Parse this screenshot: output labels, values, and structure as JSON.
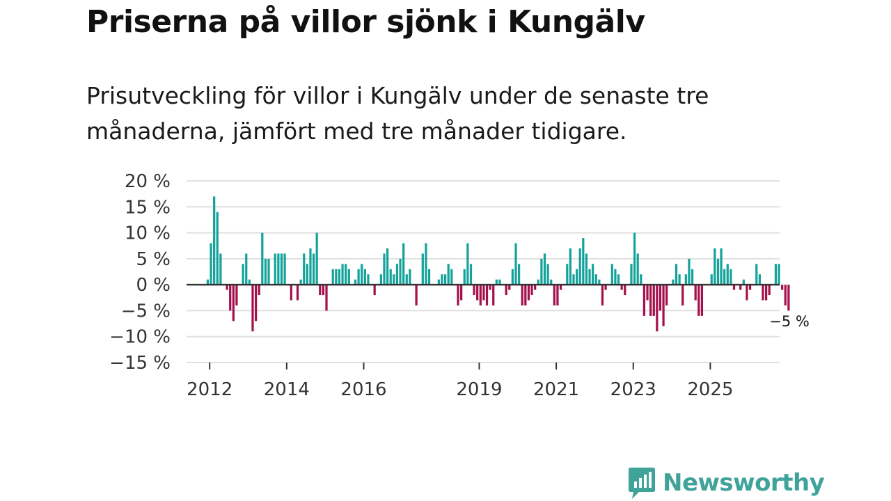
{
  "chart_data": {
    "type": "bar",
    "title": "Priserna på villor sjönk i Kungälv",
    "subtitle": "Prisutveckling för villor i Kungälv under de senaste tre månaderna, jämfört med tre månader tidigare.",
    "xlabel": "",
    "ylabel": "",
    "ylim": [
      -15,
      20
    ],
    "yticks": [
      20,
      15,
      10,
      5,
      0,
      -5,
      -10,
      -15
    ],
    "ytick_labels": [
      "20 %",
      "15 %",
      "10 %",
      "5 %",
      "0 %",
      "−5 %",
      "−10 %",
      "−15 %"
    ],
    "xtick_labels": [
      "2012",
      "2014",
      "2016",
      "2019",
      "2021",
      "2023",
      "2025"
    ],
    "xtick_positions": [
      2012,
      2014,
      2016,
      2019,
      2021,
      2023,
      2025
    ],
    "x_start": 2011.4,
    "x_end": 2026.8,
    "positive_color": "#14a39a",
    "negative_color": "#a4104b",
    "end_label": "−5 %",
    "series": [
      {
        "name": "Prisutveckling",
        "start": 2011.95,
        "step": 0.08333,
        "values": [
          1,
          8,
          17,
          14,
          6,
          0,
          -1,
          -5,
          -7,
          -4,
          0,
          4,
          6,
          1,
          -9,
          -7,
          -2,
          10,
          5,
          5,
          0,
          6,
          6,
          6,
          6,
          0,
          -3,
          0,
          -3,
          1,
          6,
          4,
          7,
          6,
          10,
          -2,
          -2,
          -5,
          0,
          3,
          3,
          3,
          4,
          4,
          3,
          0,
          1,
          3,
          4,
          3,
          2,
          0,
          -2,
          0,
          2,
          6,
          7,
          3,
          2,
          4,
          5,
          8,
          2,
          3,
          0,
          -4,
          0,
          6,
          8,
          3,
          0,
          0,
          1,
          2,
          2,
          4,
          3,
          0,
          -4,
          -3,
          3,
          8,
          4,
          -2,
          -3,
          -4,
          -3,
          -4,
          -1,
          -4,
          1,
          1,
          0,
          -2,
          -1,
          3,
          8,
          4,
          -4,
          -4,
          -3,
          -2,
          -1,
          1,
          5,
          6,
          4,
          1,
          -4,
          -4,
          -1,
          0,
          4,
          7,
          2,
          3,
          7,
          9,
          6,
          3,
          4,
          2,
          1,
          -4,
          -1,
          0,
          4,
          3,
          2,
          -1,
          -2,
          0,
          4,
          10,
          6,
          2,
          -6,
          -3,
          -6,
          -6,
          -9,
          -5,
          -8,
          -4,
          0,
          1,
          4,
          2,
          -4,
          2,
          5,
          3,
          -3,
          -6,
          -6,
          0,
          0,
          2,
          7,
          5,
          7,
          3,
          4,
          3,
          -1,
          0,
          -1,
          1,
          -3,
          -1,
          0,
          4,
          2,
          -3,
          -3,
          -2,
          0,
          4,
          4,
          -1,
          -4,
          -5
        ]
      }
    ]
  },
  "branding": {
    "logo_text": "Newsworthy",
    "logo_icon": "newsworthy-chart-bubble-icon",
    "logo_color": "#3fa39a"
  }
}
